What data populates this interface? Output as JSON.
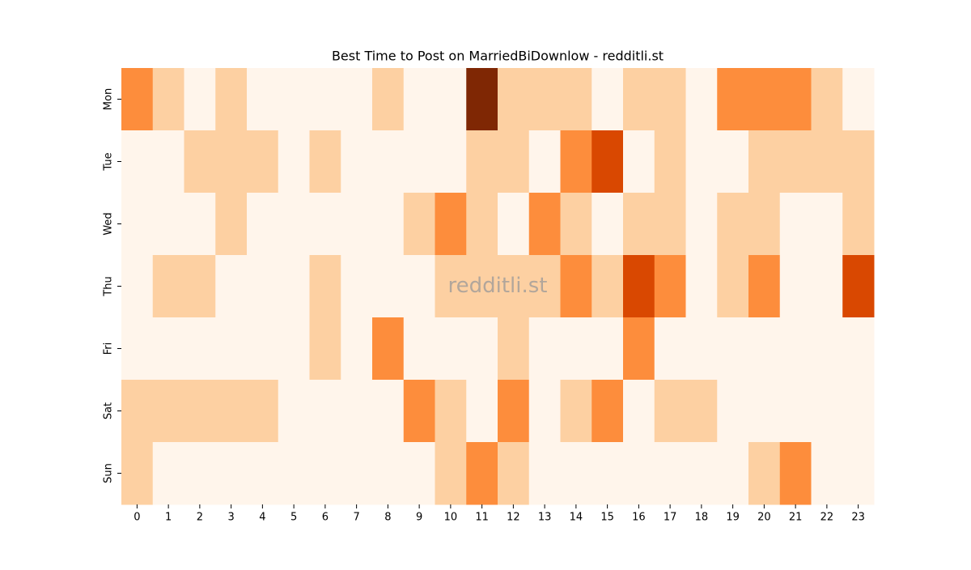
{
  "chart_data": {
    "type": "heatmap",
    "title": "Best Time to Post on MarriedBiDownlow - redditli.st",
    "watermark": "redditli.st",
    "x": [
      0,
      1,
      2,
      3,
      4,
      5,
      6,
      7,
      8,
      9,
      10,
      11,
      12,
      13,
      14,
      15,
      16,
      17,
      18,
      19,
      20,
      21,
      22,
      23
    ],
    "y_categories": [
      "Mon",
      "Tue",
      "Wed",
      "Thu",
      "Fri",
      "Sat",
      "Sun"
    ],
    "values": [
      [
        2,
        1,
        0,
        1,
        0,
        0,
        0,
        0,
        1,
        0,
        0,
        4,
        1,
        1,
        1,
        0,
        1,
        1,
        0,
        2,
        2,
        2,
        1,
        0
      ],
      [
        0,
        0,
        1,
        1,
        1,
        0,
        1,
        0,
        0,
        0,
        0,
        1,
        1,
        0,
        2,
        3,
        0,
        1,
        0,
        0,
        1,
        1,
        1,
        1
      ],
      [
        0,
        0,
        0,
        1,
        0,
        0,
        0,
        0,
        0,
        1,
        2,
        1,
        0,
        2,
        1,
        0,
        1,
        1,
        0,
        1,
        1,
        0,
        0,
        1
      ],
      [
        0,
        1,
        1,
        0,
        0,
        0,
        1,
        0,
        0,
        0,
        1,
        1,
        1,
        1,
        2,
        1,
        3,
        2,
        0,
        1,
        2,
        0,
        0,
        3
      ],
      [
        0,
        0,
        0,
        0,
        0,
        0,
        1,
        0,
        2,
        0,
        0,
        0,
        1,
        0,
        0,
        0,
        2,
        0,
        0,
        0,
        0,
        0,
        0,
        0
      ],
      [
        1,
        1,
        1,
        1,
        1,
        0,
        0,
        0,
        0,
        2,
        1,
        0,
        2,
        0,
        1,
        2,
        0,
        1,
        1,
        0,
        0,
        0,
        0,
        0
      ],
      [
        1,
        0,
        0,
        0,
        0,
        0,
        0,
        0,
        0,
        0,
        1,
        2,
        1,
        0,
        0,
        0,
        0,
        0,
        0,
        0,
        1,
        2,
        0,
        0
      ]
    ],
    "zlim": [
      0,
      4
    ],
    "colormap": [
      "#fff5eb",
      "#fdd0a2",
      "#fd8d3c",
      "#d94801",
      "#7f2704"
    ]
  }
}
